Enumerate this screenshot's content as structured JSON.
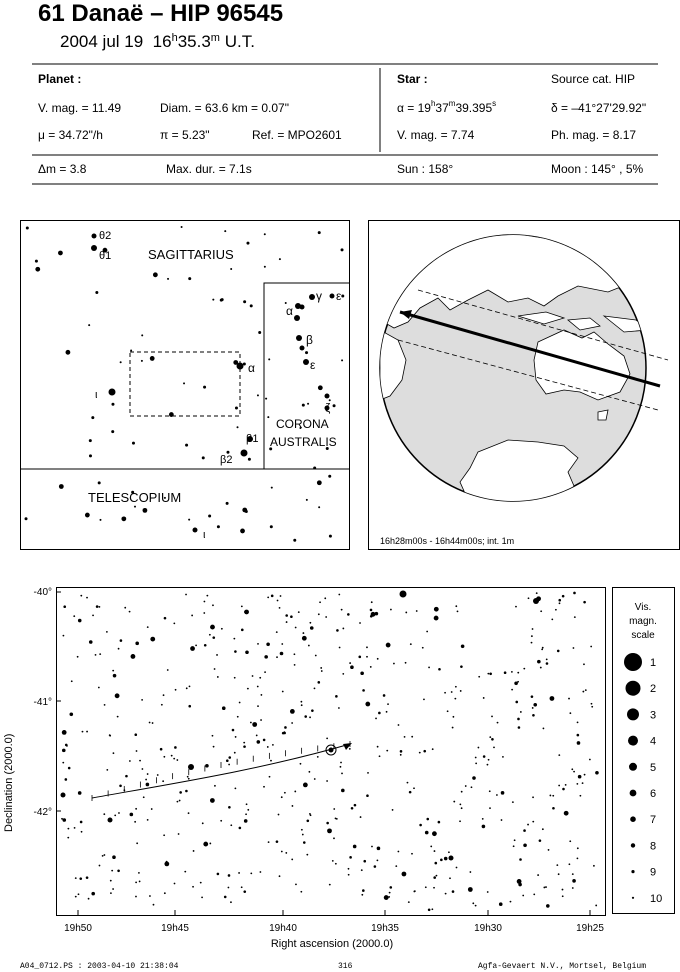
{
  "title": "61 Danaë  –  HIP 96545",
  "date": "2004 jul 19",
  "time_h": "16",
  "time_rest": "35.3",
  "time_m": "m",
  "time_ut": "U.T.",
  "time_hsup": "h",
  "planet": {
    "heading": "Planet :",
    "vmag": "V. mag. = 11.49",
    "diam": "Diam. = 63.6 km = 0.07\"",
    "mu": "μ = 34.72\"/h",
    "pi": "π = 5.23\"",
    "ref": "Ref. = MPO2601"
  },
  "star": {
    "heading": "Star :",
    "source": "Source cat. HIP",
    "alpha_pre": "α = 19",
    "alpha_h": "h",
    "alpha_mid": "37",
    "alpha_m": "m",
    "alpha_post": "39.395",
    "alpha_s": "s",
    "delta": "δ = –41°27'29.92\"",
    "vmag": "V. mag. = 7.74",
    "phmag": "Ph. mag. = 8.17"
  },
  "events": {
    "dm": "Δm = 3.8",
    "maxdur": "Max. dur. = 7.1s",
    "sun": "Sun : 158°",
    "moon": "Moon : 145° , 5%"
  },
  "constellation_map": {
    "sagittarius": "SAGITTARIUS",
    "telescopium": "TELESCOPIUM",
    "corona1": "CORONA",
    "corona2": "AUSTRALIS",
    "labels": [
      "θ2",
      "θ1",
      "α",
      "γ",
      "ε",
      "α",
      "β",
      "ε",
      "ζ",
      "ι",
      "β1",
      "β2",
      "ι"
    ]
  },
  "globe": {
    "caption": "16h28m00s - 16h44m00s; int. 1m"
  },
  "starchart": {
    "ylabel": "Declination (2000.0)",
    "xlabel": "Right ascension (2000.0)",
    "dec_ticks": [
      "-40°",
      "-41°",
      "-42°"
    ],
    "ra_ticks": [
      "19h50",
      "19h45",
      "19h40",
      "19h35",
      "19h30",
      "19h25"
    ]
  },
  "scale": {
    "title1": "Vis.",
    "title2": "magn.",
    "title3": "scale",
    "entries": [
      "1",
      "2",
      "3",
      "4",
      "5",
      "6",
      "7",
      "8",
      "9",
      "10"
    ]
  },
  "footer": {
    "file": "A04_0712.PS : 2003-04-10 21:38:04",
    "page": "316",
    "company": "Agfa-Gevaert N.V., Mortsel, Belgium"
  }
}
